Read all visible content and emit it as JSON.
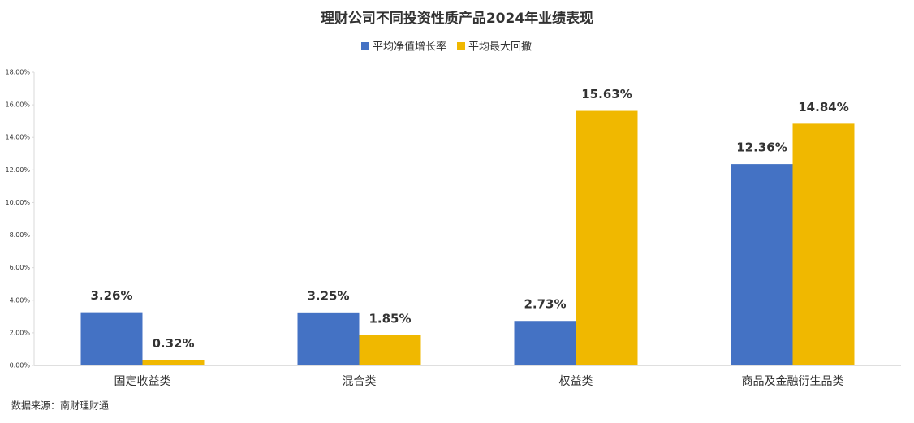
{
  "chart_data": {
    "type": "bar",
    "title": "理财公司不同投资性质产品2024年业绩表现",
    "source": "数据来源：南财理财通",
    "categories": [
      "固定收益类",
      "混合类",
      "权益类",
      "商品及金融衍生品类"
    ],
    "series": [
      {
        "name": "平均净值增长率",
        "color": "#4472c4",
        "label_color": "#1f6fb5",
        "values": [
          3.26,
          3.25,
          2.73,
          12.36
        ],
        "value_labels": [
          "3.26%",
          "3.25%",
          "2.73%",
          "12.36%"
        ]
      },
      {
        "name": "平均最大回撤",
        "color": "#f0b800",
        "label_color": "#bf9000",
        "values": [
          0.32,
          1.85,
          15.63,
          14.84
        ],
        "value_labels": [
          "0.32%",
          "1.85%",
          "15.63%",
          "14.84%"
        ]
      }
    ],
    "ylim": [
      0,
      18
    ],
    "yticks": [
      {
        "value": 0,
        "label": "0.00%"
      },
      {
        "value": 2,
        "label": "2.00%"
      },
      {
        "value": 4,
        "label": "4.00%"
      },
      {
        "value": 6,
        "label": "6.00%"
      },
      {
        "value": 8,
        "label": "8.00%"
      },
      {
        "value": 10,
        "label": "10.00%"
      },
      {
        "value": 12,
        "label": "12.00%"
      },
      {
        "value": 14,
        "label": "14.00%"
      },
      {
        "value": 16,
        "label": "16.00%"
      },
      {
        "value": 18,
        "label": "18.00%"
      }
    ],
    "grid": false,
    "legend": "top"
  }
}
